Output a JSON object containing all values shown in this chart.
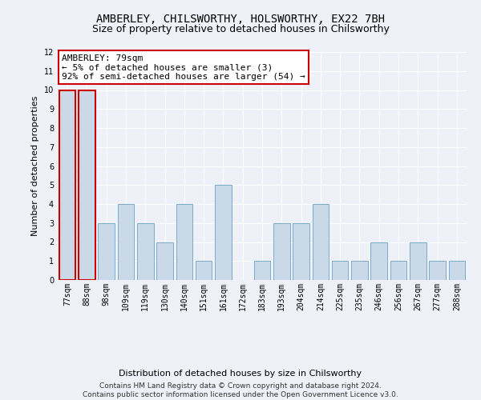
{
  "title_line1": "AMBERLEY, CHILSWORTHY, HOLSWORTHY, EX22 7BH",
  "title_line2": "Size of property relative to detached houses in Chilsworthy",
  "xlabel": "Distribution of detached houses by size in Chilsworthy",
  "ylabel": "Number of detached properties",
  "categories": [
    "77sqm",
    "88sqm",
    "98sqm",
    "109sqm",
    "119sqm",
    "130sqm",
    "140sqm",
    "151sqm",
    "161sqm",
    "172sqm",
    "183sqm",
    "193sqm",
    "204sqm",
    "214sqm",
    "225sqm",
    "235sqm",
    "246sqm",
    "256sqm",
    "267sqm",
    "277sqm",
    "288sqm"
  ],
  "values": [
    10,
    10,
    3,
    4,
    3,
    2,
    4,
    1,
    5,
    0,
    1,
    3,
    3,
    4,
    1,
    1,
    2,
    1,
    2,
    1,
    1
  ],
  "bar_color": "#c9d9e8",
  "bar_edge_color": "#7aaac8",
  "highlight_edge_color": "#cc0000",
  "annotation_text": "AMBERLEY: 79sqm\n← 5% of detached houses are smaller (3)\n92% of semi-detached houses are larger (54) →",
  "annotation_box_edge_color": "#cc0000",
  "annotation_box_face_color": "#ffffff",
  "ylim": [
    0,
    12
  ],
  "yticks": [
    0,
    1,
    2,
    3,
    4,
    5,
    6,
    7,
    8,
    9,
    10,
    11,
    12
  ],
  "footnote": "Contains HM Land Registry data © Crown copyright and database right 2024.\nContains public sector information licensed under the Open Government Licence v3.0.",
  "background_color": "#eef2f8",
  "grid_color": "#ffffff",
  "title_fontsize": 10,
  "subtitle_fontsize": 9,
  "axis_label_fontsize": 8,
  "tick_fontsize": 7,
  "annotation_fontsize": 8,
  "footnote_fontsize": 6.5
}
